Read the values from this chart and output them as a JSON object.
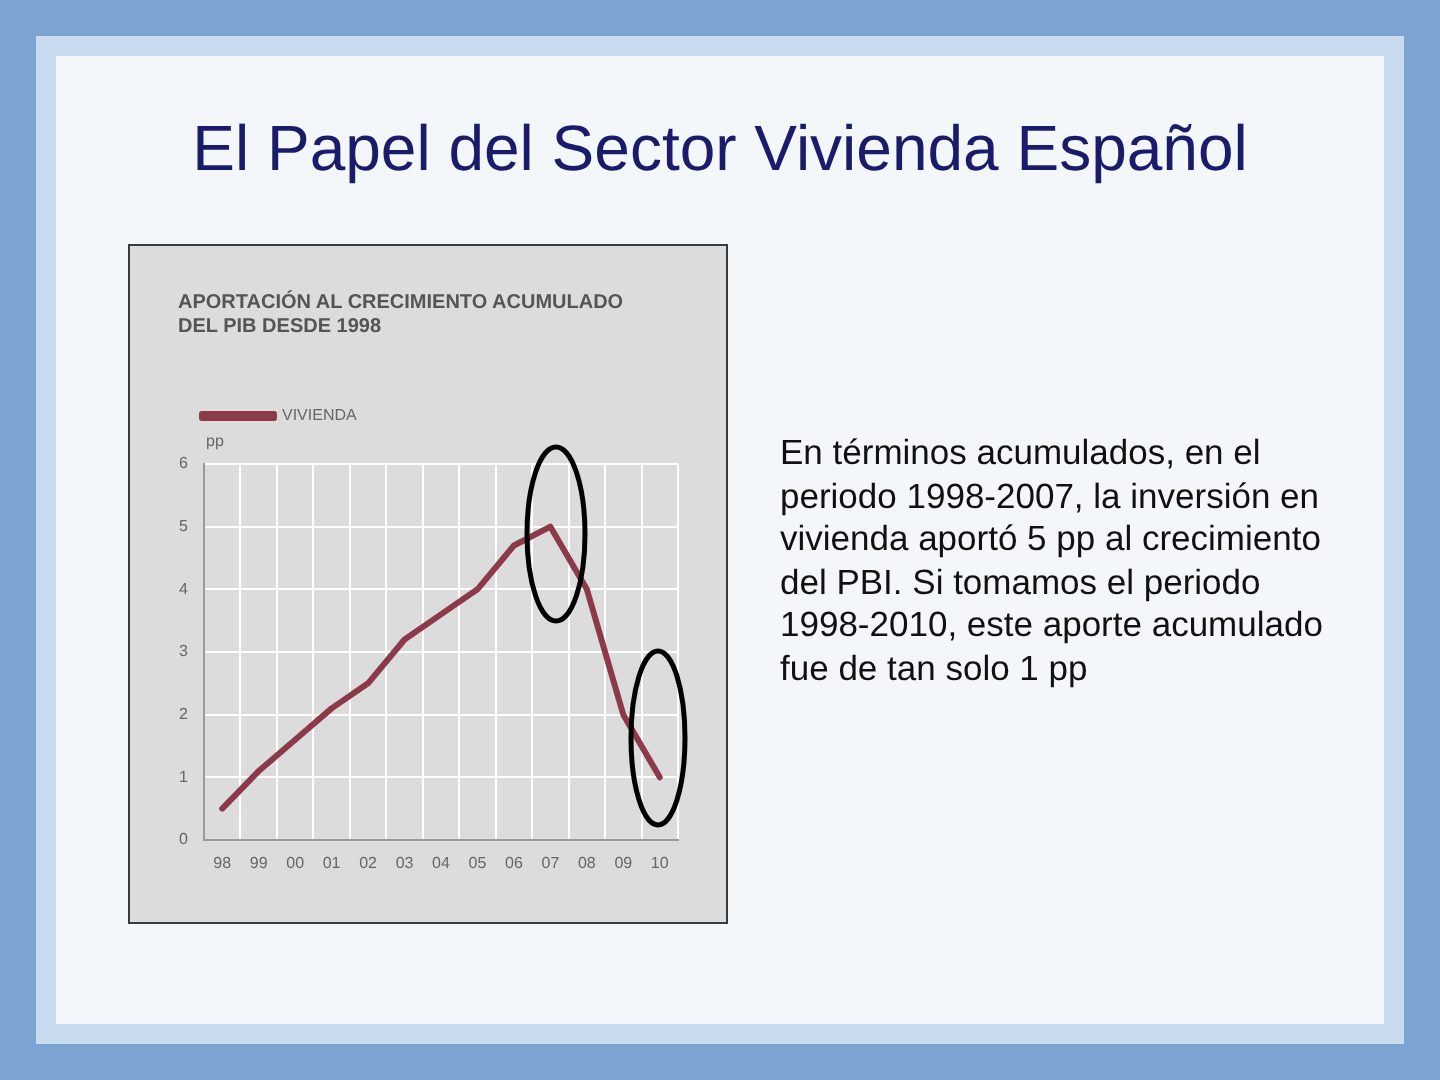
{
  "chart_data": {
    "type": "line",
    "title": "El Papel del Sector Vivienda Español",
    "subtitle": "APORTACIÓN AL CRECIMIENTO ACUMULADO DEL PIB DESDE 1998",
    "ylabel": "pp",
    "categories": [
      "98",
      "99",
      "00",
      "01",
      "02",
      "03",
      "04",
      "05",
      "06",
      "07",
      "08",
      "09",
      "10"
    ],
    "series": [
      {
        "name": "VIVIENDA",
        "color": "#8c3a4a",
        "values": [
          0.5,
          1.1,
          1.6,
          2.1,
          2.5,
          3.2,
          3.6,
          4.0,
          4.7,
          5.0,
          4.0,
          2.0,
          1.0
        ]
      }
    ],
    "ylim": [
      0,
      6
    ],
    "yticks": [
      0,
      1,
      2,
      3,
      4,
      5,
      6
    ],
    "grid": true,
    "legend": "top left",
    "annotations": [
      "En términos acumulados, en el periodo 1998-2007, la inversión en vivienda aportó 5 pp al crecimiento del PBI. Si tomamos el periodo 1998-2010, este aporte acumulado fue de tan solo 1 pp"
    ]
  }
}
